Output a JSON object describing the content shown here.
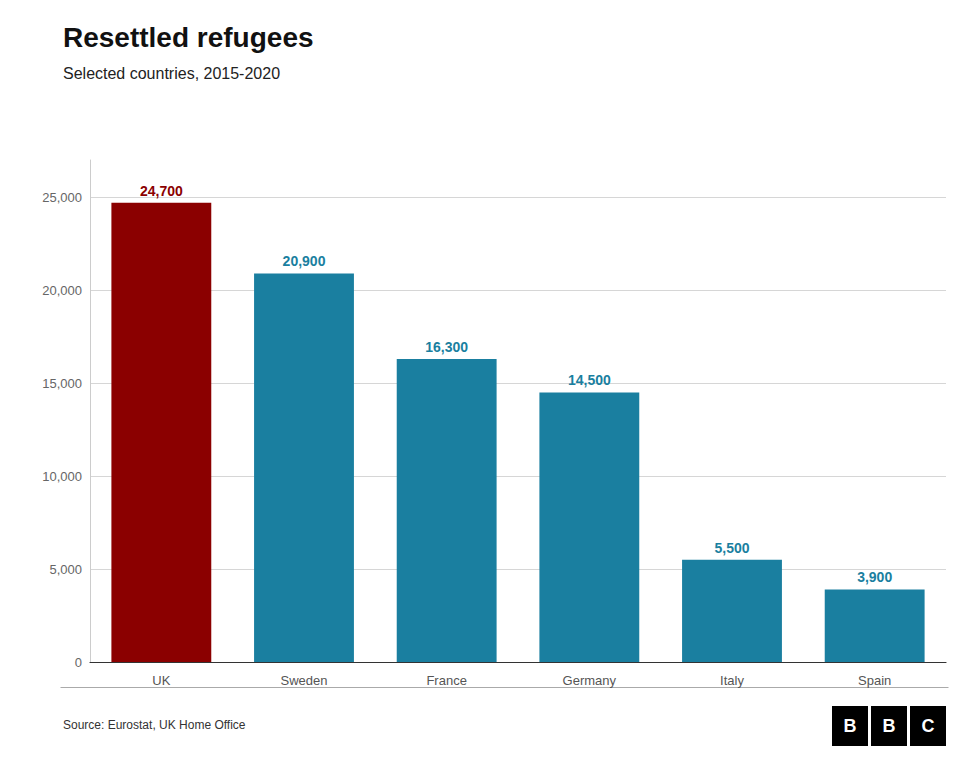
{
  "chart_data": {
    "type": "bar",
    "title": "Resettled refugees",
    "subtitle": "Selected countries, 2015-2020",
    "source": "Source: Eurostat, UK Home Office",
    "logo": "BBC",
    "categories": [
      "UK",
      "Sweden",
      "France",
      "Germany",
      "Italy",
      "Spain"
    ],
    "values": [
      24700,
      20900,
      16300,
      14500,
      5500,
      3900
    ],
    "value_labels": [
      "24,700",
      "20,900",
      "16,300",
      "14,500",
      "5,500",
      "3,900"
    ],
    "colors": [
      "#8B0000",
      "#1a7fa0",
      "#1a7fa0",
      "#1a7fa0",
      "#1a7fa0",
      "#1a7fa0"
    ],
    "data_labels": true,
    "ylim": [
      0,
      27000
    ],
    "yticks": [
      0,
      {
        "value": 5000,
        "label": "5,000"
      },
      {
        "value": 10000,
        "label": "10,000"
      },
      {
        "value": 15000,
        "label": "15,000"
      },
      {
        "value": 20000,
        "label": "20,000"
      },
      {
        "value": 25000,
        "label": "25,000"
      }
    ],
    "grid": true
  }
}
